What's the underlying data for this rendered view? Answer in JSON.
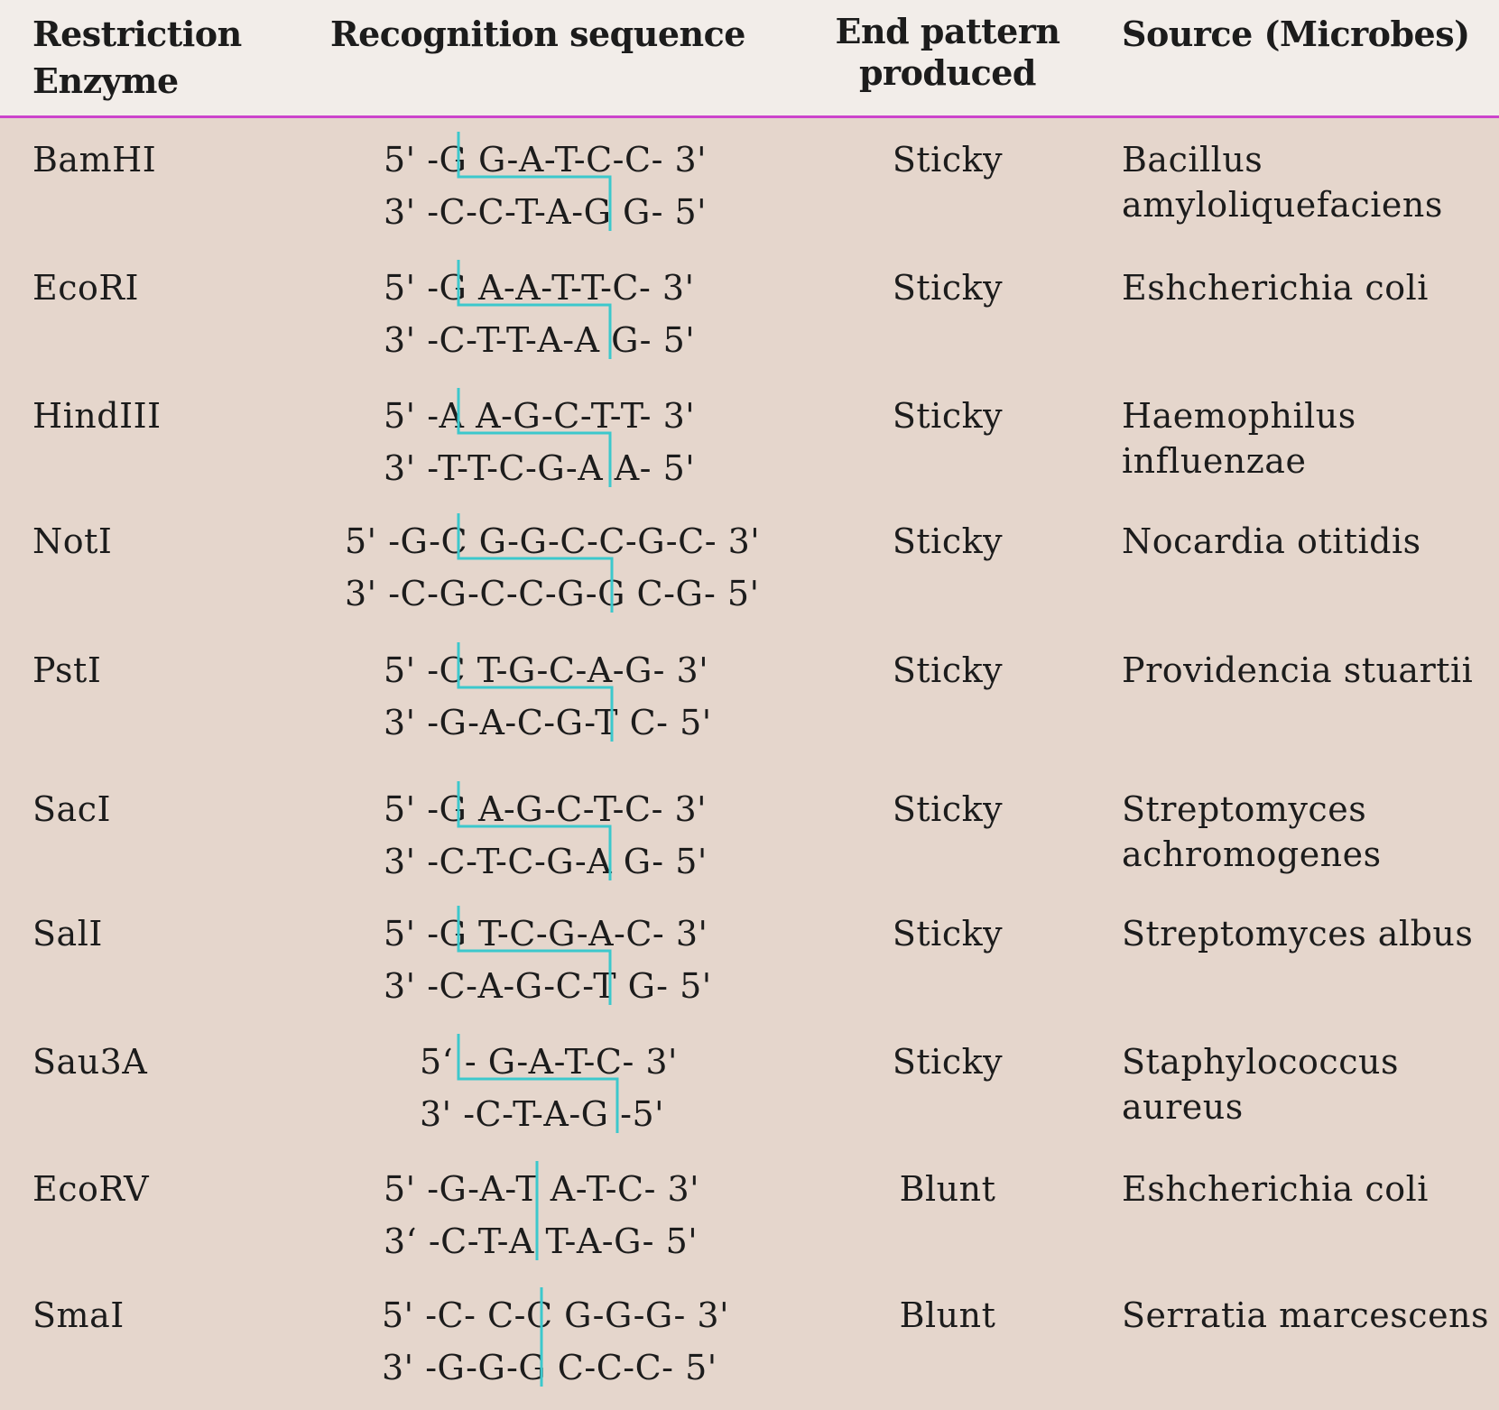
{
  "header": {
    "enzyme_line1": "Restriction",
    "enzyme_line2": "Enzyme",
    "sequence": "Recognition sequence",
    "end_line1": "End pattern",
    "end_line2": "produced",
    "source": "Source (Microbes)"
  },
  "rows": [
    {
      "enzyme": "BamHI",
      "seq_top": "5' -G G-A-T-C-C- 3'",
      "seq_bottom": "3' -C-C-T-A-G G- 5'",
      "end": "Sticky",
      "source_line1": "Bacillus",
      "source_line2": "amyloliquefaciens"
    },
    {
      "enzyme": "EcoRI",
      "seq_top": "5' -G A-A-T-T-C- 3'",
      "seq_bottom": "3' -C-T-T-A-A G- 5'",
      "end": "Sticky",
      "source_line1": "Eshcherichia coli",
      "source_line2": ""
    },
    {
      "enzyme": "HindIII",
      "seq_top": "5' -A A-G-C-T-T- 3'",
      "seq_bottom": "3' -T-T-C-G-A A- 5'",
      "end": "Sticky",
      "source_line1": "Haemophilus",
      "source_line2": "influenzae"
    },
    {
      "enzyme": "NotI",
      "seq_top": "5' -G-C G-G-C-C-G-C- 3'",
      "seq_bottom": "3' -C-G-C-C-G-G C-G- 5'",
      "end": "Sticky",
      "source_line1": "Nocardia otitidis",
      "source_line2": ""
    },
    {
      "enzyme": "PstI",
      "seq_top": "5' -C T-G-C-A-G- 3'",
      "seq_bottom": "3' -G-A-C-G-T C- 5'",
      "end": "Sticky",
      "source_line1": "Providencia stuartii",
      "source_line2": ""
    },
    {
      "enzyme": "SacI",
      "seq_top": "5' -G A-G-C-T-C- 3'",
      "seq_bottom": "3' -C-T-C-G-A G- 5'",
      "end": "Sticky",
      "source_line1": "Streptomyces",
      "source_line2": "achromogenes"
    },
    {
      "enzyme": "SalI",
      "seq_top": "5' -G T-C-G-A-C- 3'",
      "seq_bottom": "3' -C-A-G-C-T G- 5'",
      "end": "Sticky",
      "source_line1": "Streptomyces albus",
      "source_line2": ""
    },
    {
      "enzyme": "Sau3A",
      "seq_top": "5‘ - G-A-T-C- 3'",
      "seq_bottom": "3' -C-T-A-G -5'",
      "end": "Sticky",
      "source_line1": "Staphylococcus aureus",
      "source_line2": ""
    },
    {
      "enzyme": "EcoRV",
      "seq_top": "5' -G-A-T A-T-C- 3'",
      "seq_bottom": "3‘ -C-T-A T-A-G- 5'",
      "end": "Blunt",
      "source_line1": "Eshcherichia coli",
      "source_line2": ""
    },
    {
      "enzyme": "SmaI",
      "seq_top": "5' -C- C-C G-G-G- 3'",
      "seq_bottom": "3' -G-G-G C-C-C- 5'",
      "end": "Blunt",
      "source_line1": "Serratia marcescens",
      "source_line2": ""
    }
  ],
  "colors": {
    "header_bg": "#f2ede9",
    "body_bg": "#e5d6cc",
    "rule": "#cc44cc",
    "cut_line": "#3cc8cc"
  }
}
